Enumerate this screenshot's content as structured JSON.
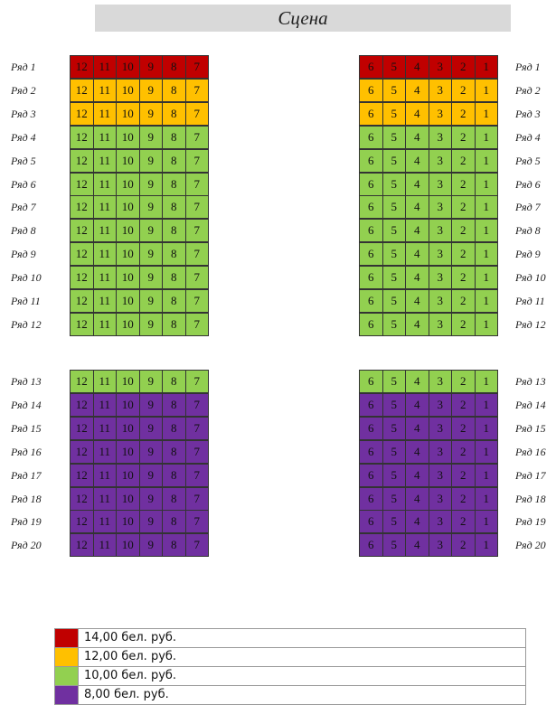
{
  "stage": {
    "label": "Сцена"
  },
  "colors": {
    "red": "#c00000",
    "orange": "#ffc000",
    "green": "#92d050",
    "purple": "#7030a0"
  },
  "seats_left": [
    "12",
    "11",
    "10",
    "9",
    "8",
    "7"
  ],
  "seats_right": [
    "6",
    "5",
    "4",
    "3",
    "2",
    "1"
  ],
  "rows": [
    {
      "label": "Ряд 1",
      "tier": "red"
    },
    {
      "label": "Ряд 2",
      "tier": "orange"
    },
    {
      "label": "Ряд 3",
      "tier": "orange"
    },
    {
      "label": "Ряд 4",
      "tier": "green"
    },
    {
      "label": "Ряд 5",
      "tier": "green"
    },
    {
      "label": "Ряд 6",
      "tier": "green"
    },
    {
      "label": "Ряд 7",
      "tier": "green"
    },
    {
      "label": "Ряд 8",
      "tier": "green"
    },
    {
      "label": "Ряд 9",
      "tier": "green"
    },
    {
      "label": "Ряд 10",
      "tier": "green"
    },
    {
      "label": "Ряд 11",
      "tier": "green"
    },
    {
      "label": "Ряд 12",
      "tier": "green"
    },
    {
      "label": "Ряд 13",
      "tier": "green"
    },
    {
      "label": "Ряд 14",
      "tier": "purple"
    },
    {
      "label": "Ряд 15",
      "tier": "purple"
    },
    {
      "label": "Ряд 16",
      "tier": "purple"
    },
    {
      "label": "Ряд 17",
      "tier": "purple"
    },
    {
      "label": "Ряд 18",
      "tier": "purple"
    },
    {
      "label": "Ряд 19",
      "tier": "purple"
    },
    {
      "label": "Ряд 20",
      "tier": "purple"
    }
  ],
  "legend": [
    {
      "tier": "red",
      "label": "14,00 бел. руб."
    },
    {
      "tier": "orange",
      "label": "12,00 бел. руб."
    },
    {
      "tier": "green",
      "label": "10,00 бел. руб."
    },
    {
      "tier": "purple",
      "label": "8,00 бел. руб."
    }
  ]
}
